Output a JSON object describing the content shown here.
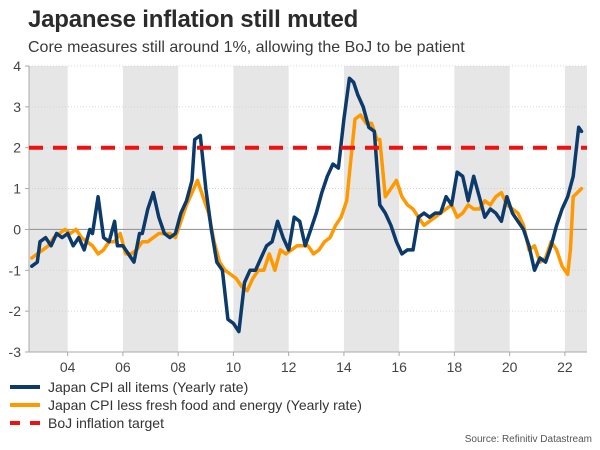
{
  "title": "Japanese inflation still muted",
  "subtitle": "Core measures still around 1%, allowing the BoJ to be patient",
  "source": "Source: Refinitiv Datastream",
  "colors": {
    "cpi_all": "#0b3a6b",
    "cpi_core": "#ff9900",
    "target": "#ee1111",
    "band": "#e6e6e6",
    "zero_line": "#999999",
    "grid": "#cccccc"
  },
  "chart_data": {
    "type": "line",
    "title": "Japanese inflation still muted",
    "subtitle": "Core measures still around 1%, allowing the BoJ to be patient",
    "xlabel": "",
    "ylabel": "",
    "xlim": [
      2002.6,
      2022.8
    ],
    "ylim": [
      -3,
      4
    ],
    "x_ticks": [
      2004,
      2006,
      2008,
      2010,
      2012,
      2014,
      2016,
      2018,
      2020,
      2022
    ],
    "x_tick_labels": [
      "04",
      "06",
      "08",
      "10",
      "12",
      "14",
      "16",
      "18",
      "20",
      "22"
    ],
    "y_ticks": [
      -3,
      -2,
      -1,
      0,
      1,
      2,
      3,
      4
    ],
    "y_tick_labels": [
      "-3",
      "-2",
      "-1",
      "0",
      "1",
      "2",
      "3",
      "4"
    ],
    "shaded_bands": [
      [
        2002.6,
        2004
      ],
      [
        2006,
        2008
      ],
      [
        2010,
        2012
      ],
      [
        2014,
        2016
      ],
      [
        2018,
        2020
      ],
      [
        2022,
        2022.8
      ]
    ],
    "grid": true,
    "legend_position": "bottom-left",
    "series": [
      {
        "name": "Japan CPI all items (Yearly rate)",
        "color_key": "cpi_all",
        "style": "solid",
        "x": [
          2002.7,
          2002.9,
          2003.0,
          2003.2,
          2003.4,
          2003.6,
          2003.8,
          2004.0,
          2004.2,
          2004.4,
          2004.6,
          2004.8,
          2004.9,
          2005.1,
          2005.3,
          2005.5,
          2005.7,
          2005.8,
          2006.0,
          2006.2,
          2006.4,
          2006.6,
          2006.7,
          2006.9,
          2007.1,
          2007.3,
          2007.5,
          2007.7,
          2007.9,
          2008.1,
          2008.3,
          2008.5,
          2008.6,
          2008.8,
          2009.0,
          2009.2,
          2009.4,
          2009.6,
          2009.8,
          2010.0,
          2010.2,
          2010.4,
          2010.6,
          2010.8,
          2011.0,
          2011.2,
          2011.4,
          2011.6,
          2011.8,
          2012.0,
          2012.2,
          2012.4,
          2012.6,
          2012.8,
          2013.0,
          2013.2,
          2013.4,
          2013.6,
          2013.8,
          2014.0,
          2014.2,
          2014.35,
          2014.5,
          2014.7,
          2014.9,
          2015.1,
          2015.3,
          2015.5,
          2015.7,
          2015.9,
          2016.1,
          2016.3,
          2016.5,
          2016.7,
          2016.9,
          2017.1,
          2017.3,
          2017.5,
          2017.7,
          2017.9,
          2018.1,
          2018.3,
          2018.5,
          2018.7,
          2018.9,
          2019.1,
          2019.3,
          2019.5,
          2019.7,
          2019.9,
          2020.1,
          2020.3,
          2020.5,
          2020.7,
          2020.9,
          2021.1,
          2021.3,
          2021.5,
          2021.7,
          2021.9,
          2022.1,
          2022.3,
          2022.5,
          2022.6
        ],
        "y": [
          -0.9,
          -0.8,
          -0.3,
          -0.2,
          -0.4,
          -0.1,
          -0.2,
          -0.1,
          -0.4,
          -0.2,
          -0.5,
          0.0,
          -0.1,
          0.8,
          -0.2,
          -0.3,
          0.2,
          -0.4,
          -0.4,
          -0.6,
          -0.8,
          -0.1,
          -0.1,
          0.5,
          0.9,
          0.3,
          -0.1,
          -0.2,
          -0.1,
          0.4,
          0.7,
          1.2,
          2.2,
          2.3,
          1.0,
          0.0,
          -0.8,
          -1.0,
          -2.2,
          -2.3,
          -2.5,
          -1.3,
          -1.0,
          -1.0,
          -0.7,
          -0.4,
          -0.3,
          0.2,
          -0.2,
          -0.5,
          0.3,
          0.2,
          -0.4,
          0.0,
          0.4,
          0.9,
          1.3,
          1.6,
          1.5,
          2.7,
          3.7,
          3.6,
          3.3,
          3.0,
          2.5,
          2.4,
          0.6,
          0.4,
          0.1,
          -0.3,
          -0.6,
          -0.5,
          -0.5,
          0.3,
          0.4,
          0.3,
          0.4,
          0.4,
          0.8,
          0.6,
          1.4,
          1.3,
          0.7,
          1.3,
          0.8,
          0.3,
          0.5,
          0.4,
          0.2,
          0.8,
          0.4,
          0.2,
          0.0,
          -0.4,
          -1.0,
          -0.7,
          -0.8,
          -0.4,
          0.1,
          0.5,
          0.8,
          1.3,
          2.5,
          2.4
        ]
      },
      {
        "name": "Japan CPI less fresh food and energy (Yearly rate)",
        "color_key": "cpi_core",
        "style": "solid",
        "x": [
          2002.7,
          2002.9,
          2003.1,
          2003.3,
          2003.5,
          2003.7,
          2003.9,
          2004.1,
          2004.3,
          2004.5,
          2004.7,
          2004.9,
          2005.1,
          2005.3,
          2005.5,
          2005.7,
          2005.9,
          2006.1,
          2006.3,
          2006.5,
          2006.7,
          2006.9,
          2007.1,
          2007.3,
          2007.5,
          2007.7,
          2007.9,
          2008.1,
          2008.3,
          2008.5,
          2008.7,
          2008.9,
          2009.1,
          2009.3,
          2009.5,
          2009.7,
          2009.9,
          2010.1,
          2010.3,
          2010.5,
          2010.7,
          2010.9,
          2011.1,
          2011.3,
          2011.5,
          2011.7,
          2011.9,
          2012.1,
          2012.3,
          2012.5,
          2012.7,
          2012.9,
          2013.1,
          2013.3,
          2013.5,
          2013.7,
          2013.9,
          2014.1,
          2014.25,
          2014.4,
          2014.6,
          2014.8,
          2015.0,
          2015.2,
          2015.3,
          2015.5,
          2015.7,
          2015.9,
          2016.1,
          2016.3,
          2016.5,
          2016.7,
          2016.9,
          2017.1,
          2017.3,
          2017.5,
          2017.7,
          2017.9,
          2018.1,
          2018.3,
          2018.5,
          2018.7,
          2018.9,
          2019.1,
          2019.3,
          2019.5,
          2019.7,
          2019.9,
          2020.1,
          2020.3,
          2020.5,
          2020.7,
          2020.9,
          2021.1,
          2021.3,
          2021.5,
          2021.7,
          2021.9,
          2022.1,
          2022.2,
          2022.3,
          2022.6
        ],
        "y": [
          -0.7,
          -0.6,
          -0.5,
          -0.4,
          -0.2,
          -0.1,
          0.0,
          -0.1,
          0.0,
          -0.2,
          -0.3,
          -0.4,
          -0.6,
          -0.5,
          -0.3,
          -0.3,
          -0.1,
          -0.6,
          -0.6,
          -0.5,
          -0.3,
          -0.3,
          -0.2,
          -0.1,
          -0.1,
          -0.1,
          -0.2,
          0.2,
          0.6,
          0.9,
          1.2,
          0.8,
          0.4,
          -0.3,
          -0.8,
          -1.0,
          -1.1,
          -1.2,
          -1.4,
          -1.5,
          -1.2,
          -1.0,
          -1.0,
          -0.6,
          -1.0,
          -0.5,
          -0.6,
          -0.5,
          -0.4,
          -0.4,
          -0.4,
          -0.6,
          -0.5,
          -0.3,
          -0.2,
          0.1,
          0.3,
          0.7,
          1.7,
          2.7,
          2.8,
          2.6,
          2.6,
          2.2,
          2.2,
          0.8,
          1.0,
          1.2,
          0.8,
          0.6,
          0.5,
          0.3,
          0.1,
          0.2,
          0.3,
          0.4,
          0.5,
          0.6,
          0.3,
          0.4,
          0.6,
          0.5,
          0.5,
          0.7,
          0.6,
          0.8,
          0.9,
          0.6,
          0.5,
          0.4,
          0.1,
          -0.5,
          -0.4,
          -0.8,
          -0.7,
          -0.3,
          -0.5,
          -0.9,
          -1.1,
          -0.5,
          0.8,
          1.0
        ]
      },
      {
        "name": "BoJ inflation target",
        "color_key": "target",
        "style": "dashed",
        "x": [
          2002.6,
          2022.8
        ],
        "y": [
          2,
          2
        ]
      }
    ]
  }
}
